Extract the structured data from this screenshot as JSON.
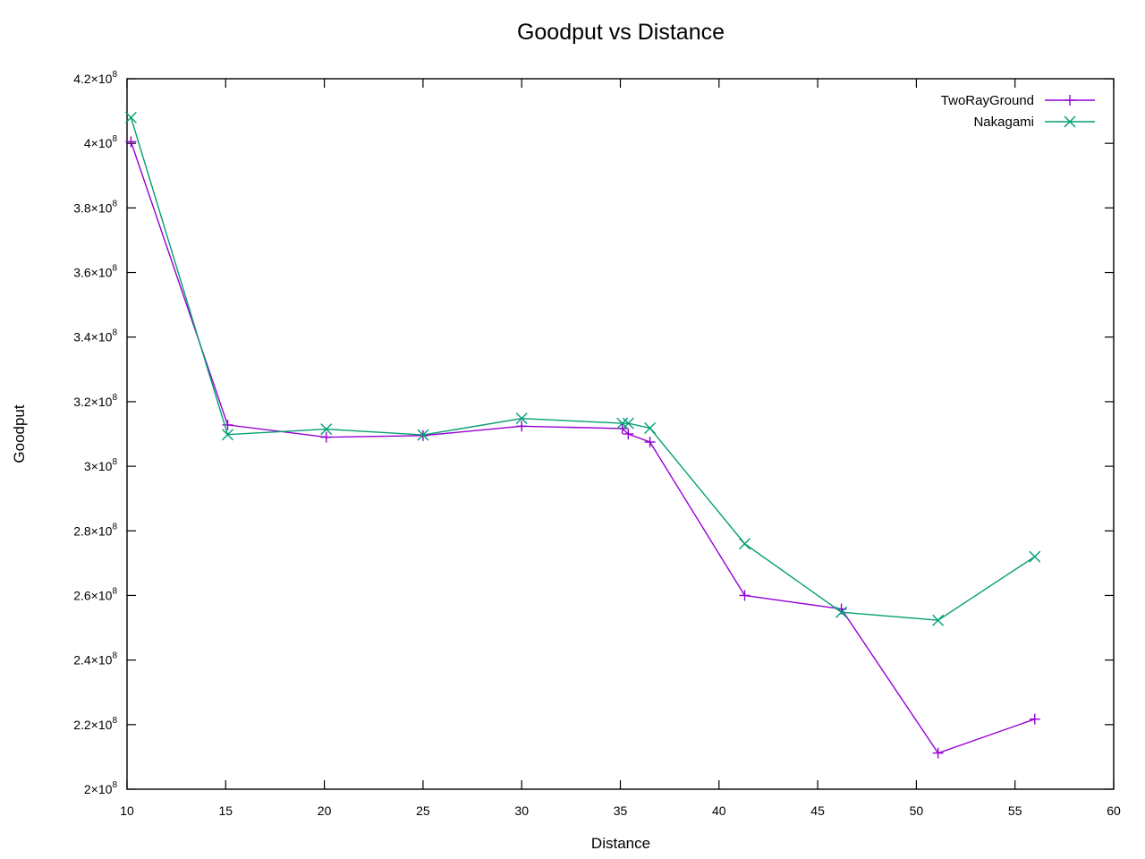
{
  "chart_data": {
    "type": "line",
    "title": "Goodput vs Distance",
    "xlabel": "Distance",
    "ylabel": "Goodput",
    "xlim": [
      10,
      60
    ],
    "ylim": [
      200000000,
      420000000
    ],
    "x_ticks": [
      10,
      15,
      20,
      25,
      30,
      35,
      40,
      45,
      50,
      55,
      60
    ],
    "x_tick_labels": [
      "10",
      "15",
      "20",
      "25",
      "30",
      "35",
      "40",
      "45",
      "50",
      "55",
      "60"
    ],
    "y_ticks": [
      200000000,
      220000000,
      240000000,
      260000000,
      280000000,
      300000000,
      320000000,
      340000000,
      360000000,
      380000000,
      400000000,
      420000000
    ],
    "y_tick_mantissas": [
      "2",
      "2.2",
      "2.4",
      "2.6",
      "2.8",
      "3",
      "3.2",
      "3.4",
      "3.6",
      "3.8",
      "4",
      "4.2"
    ],
    "y_tick_base": "×10",
    "y_tick_exponent": "8",
    "grid": false,
    "legend_position": "top-right",
    "series": [
      {
        "name": "TwoRayGround",
        "color": "#9400d3",
        "marker": "plus",
        "x": [
          10.2,
          15.1,
          20.1,
          25.0,
          30.0,
          35.1,
          35.4,
          36.5,
          41.3,
          46.2,
          51.1,
          56.0
        ],
        "y": [
          400500000,
          312800000,
          309000000,
          309500000,
          312400000,
          311700000,
          310000000,
          307500000,
          260000000,
          255800000,
          211200000,
          221700000
        ]
      },
      {
        "name": "Nakagami",
        "color": "#009e73",
        "marker": "cross",
        "x": [
          10.2,
          15.1,
          20.1,
          25.0,
          30.0,
          35.1,
          35.4,
          36.5,
          41.3,
          46.2,
          51.1,
          56.0
        ],
        "y": [
          408000000,
          309800000,
          311500000,
          309700000,
          314800000,
          313300000,
          313300000,
          311800000,
          276000000,
          254800000,
          252300000,
          272000000
        ]
      }
    ]
  }
}
